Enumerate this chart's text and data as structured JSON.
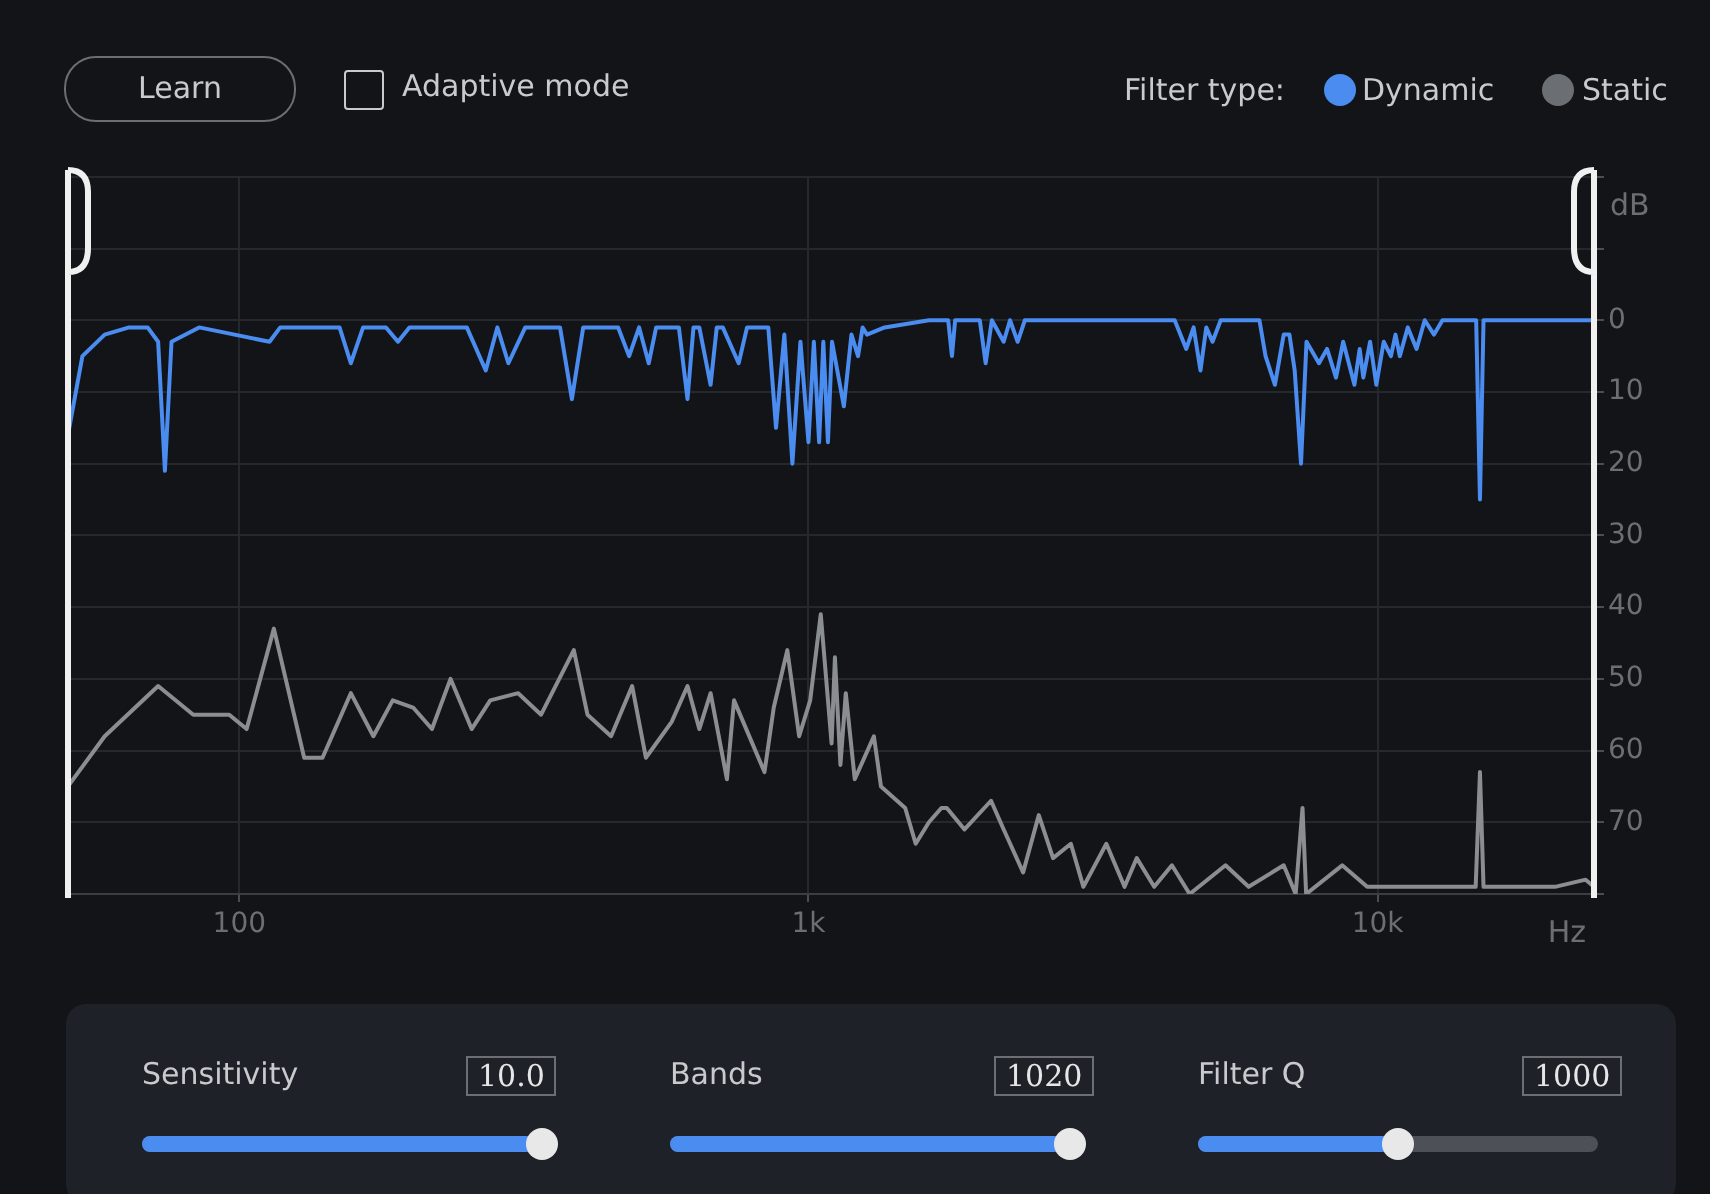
{
  "chart_data": {
    "type": "line",
    "xlabel": "Hz",
    "ylabel": "dB",
    "log": "x",
    "grid": true,
    "legend": false,
    "xlim": [
      50,
      24000
    ],
    "xticks": [
      100,
      {
        "value": 1000,
        "label": "1k"
      },
      {
        "value": 10000,
        "label": "10k"
      }
    ],
    "ylim": [
      -80,
      20
    ],
    "yticks": [
      {
        "value": 20,
        "label": null
      },
      {
        "value": 10,
        "label": null
      },
      0,
      {
        "value": -10,
        "label": "10"
      },
      {
        "value": -20,
        "label": "20"
      },
      {
        "value": -30,
        "label": "30"
      },
      {
        "value": -40,
        "label": "40"
      },
      {
        "value": -50,
        "label": "50"
      },
      {
        "value": -60,
        "label": "60"
      },
      {
        "value": -70,
        "label": "70"
      },
      {
        "value": -80,
        "label": null
      }
    ],
    "annotations": [
      "Learn",
      "Adaptive mode",
      "Filter type:",
      "Dynamic",
      "Static",
      "Sensitivity",
      "10.0",
      "Bands",
      "1020",
      "Filter Q",
      "1000"
    ],
    "series": [
      {
        "color": "#8a8d92",
        "x": [
          50,
          58,
          72,
          83,
          96,
          103,
          115,
          130,
          140,
          157,
          172,
          186,
          202,
          218,
          235,
          256,
          276,
          309,
          339,
          387,
          409,
          450,
          490,
          518,
          575,
          613,
          643,
          673,
          719,
          740,
          837,
          869,
          918,
          963,
          1007,
          1051,
          1098,
          1113,
          1138,
          1163,
          1206,
          1303,
          1341,
          1479,
          1543,
          1628,
          1712,
          1750,
          1880,
          2093,
          2203,
          2383,
          2539,
          2690,
          2891,
          3041,
          3337,
          3592,
          3774,
          4050,
          4351,
          4675,
          5405,
          5935,
          6839,
          7178,
          7380,
          7489,
          8665,
          9587,
          11070,
          13350,
          14870,
          15130,
          15350,
          17750,
          20500,
          23200,
          24000
        ],
        "values": [
          -65,
          -58,
          -51,
          -55,
          -55,
          -57,
          -43,
          -61,
          -61,
          -52,
          -58,
          -53,
          -54,
          -57,
          -50,
          -57,
          -53,
          -52,
          -55,
          -46,
          -55,
          -58,
          -51,
          -61,
          -56,
          -51,
          -57,
          -52,
          -64,
          -53,
          -63,
          -54,
          -46,
          -58,
          -53,
          -41,
          -59,
          -47,
          -62,
          -52,
          -64,
          -58,
          -65,
          -68,
          -73,
          -70,
          -68,
          -68,
          -71,
          -67,
          -71,
          -77,
          -69,
          -75,
          -73,
          -79,
          -73,
          -79,
          -75,
          -79,
          -76,
          -80,
          -76,
          -79,
          -76,
          -80,
          -68,
          -80,
          -76,
          -79,
          -79,
          -79,
          -79,
          -63,
          -79,
          -79,
          -79,
          -78,
          -79
        ]
      },
      {
        "color": "#4a8cf0",
        "x": [
          50,
          53,
          58,
          64,
          69,
          72,
          74,
          76,
          85,
          113,
          118,
          150,
          157,
          165,
          181,
          190,
          199,
          251,
          271,
          284,
          297,
          318,
          366,
          384,
          402,
          463,
          484,
          504,
          524,
          540,
          592,
          613,
          628,
          643,
          673,
          690,
          707,
          754,
          780,
          850,
          877,
          907,
          937,
          968,
          1000,
          1022,
          1044,
          1062,
          1082,
          1100,
          1154,
          1190,
          1222,
          1245,
          1267,
          1361,
          1628,
          1760,
          1787,
          1810,
          2000,
          2048,
          2100,
          2203,
          2260,
          2331,
          2400,
          3592,
          4400,
          4611,
          4750,
          4884,
          5000,
          5128,
          5300,
          6200,
          6355,
          6600,
          6839,
          7000,
          7150,
          7335,
          7500,
          7888,
          8150,
          8451,
          8700,
          9105,
          9300,
          9438,
          9700,
          9948,
          10250,
          10555,
          10750,
          10939,
          11300,
          11706,
          12100,
          12563,
          13000,
          14900,
          15130,
          15350,
          24000
        ],
        "values": [
          -16,
          -5,
          -2,
          -1,
          -1,
          -3,
          -21,
          -3,
          -1,
          -3,
          -1,
          -1,
          -6,
          -1,
          -1,
          -3,
          -1,
          -1,
          -7,
          -1,
          -6,
          -1,
          -1,
          -11,
          -1,
          -1,
          -5,
          -1,
          -6,
          -1,
          -1,
          -11,
          -1,
          -1,
          -9,
          -1,
          -1,
          -6,
          -1,
          -1,
          -15,
          -2,
          -20,
          -3,
          -17,
          -3,
          -17,
          -3,
          -17,
          -3,
          -12,
          -2,
          -5,
          -1,
          -2,
          -1,
          0,
          0,
          -5,
          0,
          0,
          -6,
          0,
          -3,
          0,
          -3,
          0,
          0,
          0,
          -4,
          -1,
          -7,
          -1,
          -3,
          0,
          0,
          -5,
          -9,
          -2,
          -2,
          -7,
          -20,
          -3,
          -6,
          -4,
          -8,
          -3,
          -9,
          -4,
          -8,
          -3,
          -9,
          -3,
          -5,
          -2,
          -5,
          -1,
          -4,
          0,
          -2,
          0,
          0,
          -25,
          0,
          0
        ]
      }
    ]
  }
}
